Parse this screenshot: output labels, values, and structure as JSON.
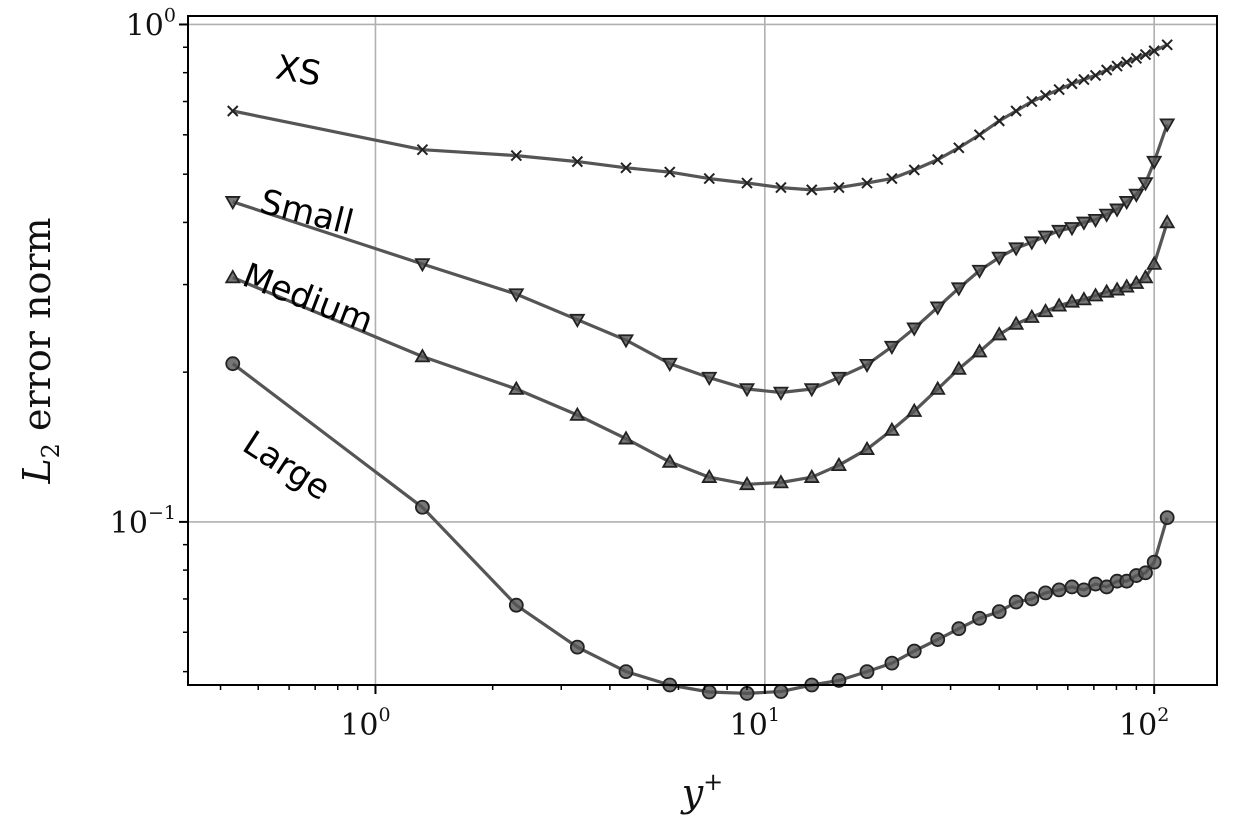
{
  "chart_data": {
    "type": "line",
    "xscale": "log",
    "yscale": "log",
    "xlim": [
      0.33,
      145
    ],
    "ylim": [
      0.047,
      1.04
    ],
    "grid": true,
    "legend": "none",
    "xlabel": {
      "main": "y",
      "sup": "+"
    },
    "ylabel": {
      "main": "L",
      "sub": "2",
      "rest": " error norm"
    },
    "x_ticks": [
      {
        "base": "10",
        "exp": "0",
        "value": 1
      },
      {
        "base": "10",
        "exp": "1",
        "value": 10
      },
      {
        "base": "10",
        "exp": "2",
        "value": 100
      }
    ],
    "y_ticks": [
      {
        "base": "10",
        "exp": "0",
        "value": 1
      },
      {
        "base": "10",
        "exp": "−1",
        "value": 0.1
      }
    ],
    "x": [
      0.43,
      1.32,
      2.3,
      3.3,
      4.4,
      5.7,
      7.2,
      9.0,
      11.0,
      13.2,
      15.5,
      18.3,
      21.2,
      24.2,
      27.8,
      31.5,
      35.6,
      40.0,
      44.2,
      48.5,
      52.6,
      57.0,
      61.5,
      66.0,
      70.7,
      75.5,
      80.3,
      85.0,
      90.0,
      95.0,
      100.0,
      108.0
    ],
    "series": [
      {
        "name": "XS",
        "marker": "x",
        "values": [
          0.67,
          0.56,
          0.545,
          0.53,
          0.515,
          0.505,
          0.49,
          0.48,
          0.47,
          0.465,
          0.47,
          0.48,
          0.49,
          0.51,
          0.535,
          0.565,
          0.6,
          0.64,
          0.67,
          0.7,
          0.72,
          0.74,
          0.76,
          0.775,
          0.79,
          0.81,
          0.825,
          0.84,
          0.855,
          0.87,
          0.885,
          0.91
        ]
      },
      {
        "name": "Small",
        "marker": "triangle-down",
        "values": [
          0.44,
          0.33,
          0.287,
          0.255,
          0.232,
          0.208,
          0.195,
          0.185,
          0.182,
          0.185,
          0.195,
          0.207,
          0.225,
          0.245,
          0.27,
          0.295,
          0.32,
          0.34,
          0.355,
          0.365,
          0.375,
          0.385,
          0.39,
          0.4,
          0.405,
          0.415,
          0.425,
          0.44,
          0.455,
          0.48,
          0.53,
          0.63
        ]
      },
      {
        "name": "Medium",
        "marker": "triangle-up",
        "values": [
          0.31,
          0.215,
          0.185,
          0.164,
          0.147,
          0.132,
          0.123,
          0.119,
          0.12,
          0.123,
          0.13,
          0.14,
          0.153,
          0.167,
          0.185,
          0.203,
          0.22,
          0.238,
          0.25,
          0.258,
          0.265,
          0.272,
          0.277,
          0.28,
          0.285,
          0.29,
          0.293,
          0.297,
          0.302,
          0.31,
          0.33,
          0.4
        ]
      },
      {
        "name": "Large",
        "marker": "circle",
        "values": [
          0.208,
          0.107,
          0.068,
          0.056,
          0.05,
          0.047,
          0.0455,
          0.0452,
          0.0456,
          0.047,
          0.048,
          0.05,
          0.052,
          0.055,
          0.058,
          0.061,
          0.064,
          0.066,
          0.069,
          0.07,
          0.072,
          0.073,
          0.074,
          0.073,
          0.075,
          0.074,
          0.076,
          0.076,
          0.078,
          0.079,
          0.083,
          0.102
        ]
      }
    ],
    "series_labels": [
      {
        "series": "XS",
        "text": "XS",
        "anchor_x": 0.55,
        "anchor_y": 0.78,
        "rotate": 10
      },
      {
        "series": "Small",
        "text": "Small",
        "anchor_x": 0.5,
        "anchor_y": 0.42,
        "rotate": 14
      },
      {
        "series": "Medium",
        "text": "Medium",
        "anchor_x": 0.45,
        "anchor_y": 0.3,
        "rotate": 21
      },
      {
        "series": "Large",
        "text": "Large",
        "anchor_x": 0.45,
        "anchor_y": 0.14,
        "rotate": 33
      }
    ]
  },
  "style": {
    "line_color": "#555555",
    "marker_fill": "#555555",
    "marker_edge": "#222222",
    "grid_color": "#b0b0b0",
    "frame_color": "#000000"
  }
}
